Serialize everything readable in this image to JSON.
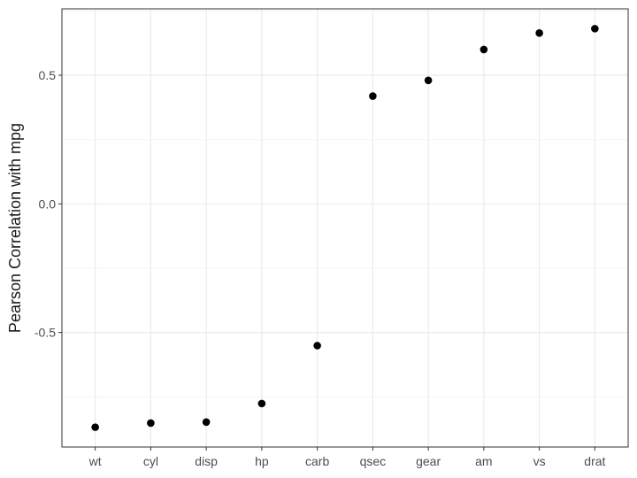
{
  "chart_data": {
    "type": "scatter",
    "title": "",
    "xlabel": "",
    "ylabel": "Pearson Correlation with mpg",
    "categories": [
      "wt",
      "cyl",
      "disp",
      "hp",
      "carb",
      "qsec",
      "gear",
      "am",
      "vs",
      "drat"
    ],
    "values": [
      -0.868,
      -0.852,
      -0.848,
      -0.776,
      -0.551,
      0.419,
      0.48,
      0.6,
      0.664,
      0.681
    ],
    "y_ticks": [
      -0.5,
      0.0,
      0.5
    ],
    "y_tick_labels": [
      "-0.5",
      "0.0",
      "0.5"
    ],
    "ylim": [
      -0.945,
      0.758
    ],
    "grid": true,
    "legend": "none",
    "colors": {
      "point": "#000000",
      "grid_major": "#ebebeb",
      "grid_minor": "#f5f5f5",
      "panel_border": "#333333",
      "tick_label": "#4d4d4d"
    }
  }
}
